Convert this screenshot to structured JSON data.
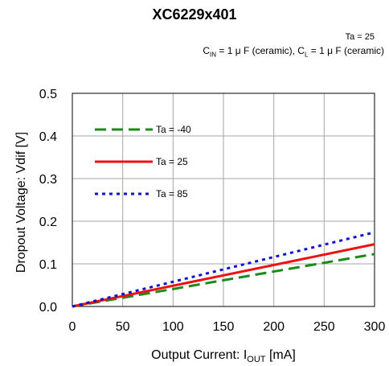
{
  "header": {
    "title": "XC6229x401",
    "condition_temp": "Ta = 25",
    "cin_sub": "IN",
    "cin_rest": " = 1 μ F (ceramic), C",
    "cl_sub": "L",
    "cl_rest": " = 1 μ F (ceramic)"
  },
  "chart_data": {
    "type": "line",
    "xlabel_prefix": "Output Current: I",
    "xlabel_sub": "OUT",
    "xlabel_suffix": " [mA]",
    "ylabel": "Dropout Voltage: Vdif [V]",
    "xlim": [
      0,
      300
    ],
    "ylim": [
      0,
      0.5
    ],
    "xticks": [
      "0",
      "50",
      "100",
      "150",
      "200",
      "250",
      "300"
    ],
    "yticks": [
      "0.0",
      "0.1",
      "0.2",
      "0.3",
      "0.4",
      "0.5"
    ],
    "grid": true,
    "legend_position": "top-left",
    "series": [
      {
        "name": "Ta = -40",
        "color": "#1a8a1a",
        "style": "dashed",
        "x": [
          0,
          300
        ],
        "y": [
          0,
          0.123
        ]
      },
      {
        "name": "Ta = 25",
        "color": "#ee1111",
        "style": "solid",
        "x": [
          0,
          300
        ],
        "y": [
          0,
          0.146
        ]
      },
      {
        "name": "Ta = 85",
        "color": "#1111cc",
        "style": "dotted",
        "x": [
          0,
          300
        ],
        "y": [
          0,
          0.174
        ]
      }
    ]
  }
}
